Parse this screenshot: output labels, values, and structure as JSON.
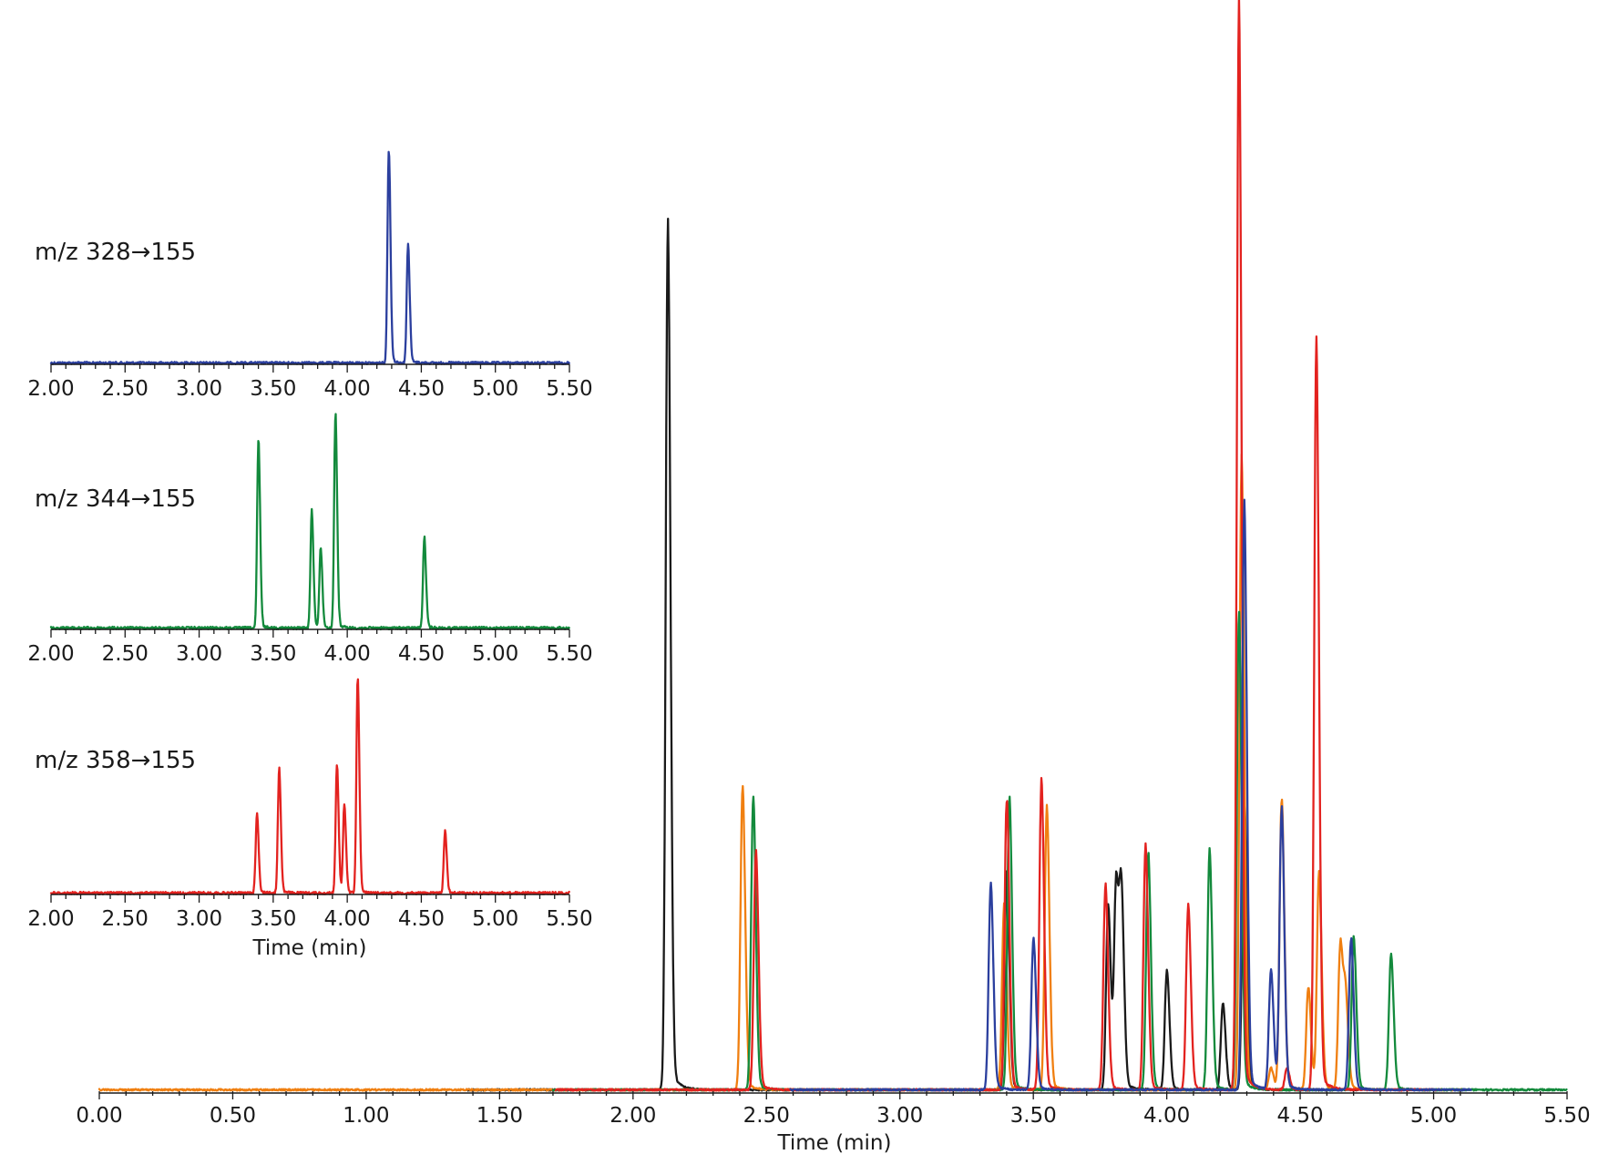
{
  "colors": {
    "blue": "#2b3f9e",
    "green": "#138a3c",
    "red": "#e3221f",
    "orange": "#f07f10",
    "black": "#1a1a1a"
  },
  "chart_data": [
    {
      "type": "line",
      "id": "inset-328",
      "label": "m/z 328→155",
      "xlim": [
        2.0,
        5.5
      ],
      "xticks": [
        "2.00",
        "2.50",
        "3.00",
        "3.50",
        "4.00",
        "4.50",
        "5.00",
        "5.50"
      ],
      "xlabel": "",
      "series": [
        {
          "color": "blue",
          "peaks": [
            {
              "t": 4.28,
              "h": 1.0
            },
            {
              "t": 4.41,
              "h": 0.55
            }
          ]
        }
      ]
    },
    {
      "type": "line",
      "id": "inset-344",
      "label": "m/z 344→155",
      "xlim": [
        2.0,
        5.5
      ],
      "xticks": [
        "2.00",
        "2.50",
        "3.00",
        "3.50",
        "4.00",
        "4.50",
        "5.00",
        "5.50"
      ],
      "xlabel": "",
      "series": [
        {
          "color": "green",
          "peaks": [
            {
              "t": 3.4,
              "h": 0.88
            },
            {
              "t": 3.76,
              "h": 0.54
            },
            {
              "t": 3.82,
              "h": 0.37
            },
            {
              "t": 3.92,
              "h": 1.0
            },
            {
              "t": 4.52,
              "h": 0.42
            }
          ]
        }
      ]
    },
    {
      "type": "line",
      "id": "inset-358",
      "label": "m/z 358→155",
      "xlim": [
        2.0,
        5.5
      ],
      "xticks": [
        "2.00",
        "2.50",
        "3.00",
        "3.50",
        "4.00",
        "4.50",
        "5.00",
        "5.50"
      ],
      "xlabel": "Time (min)",
      "series": [
        {
          "color": "red",
          "peaks": [
            {
              "t": 3.39,
              "h": 0.37
            },
            {
              "t": 3.54,
              "h": 0.58
            },
            {
              "t": 3.93,
              "h": 0.6
            },
            {
              "t": 3.98,
              "h": 0.41
            },
            {
              "t": 4.07,
              "h": 1.0
            },
            {
              "t": 4.66,
              "h": 0.29
            }
          ]
        }
      ]
    },
    {
      "type": "line",
      "id": "main",
      "label": "",
      "xlim": [
        0.0,
        5.5
      ],
      "xticks": [
        "0.00",
        "0.50",
        "1.00",
        "1.50",
        "2.00",
        "2.50",
        "3.00",
        "3.50",
        "4.00",
        "4.50",
        "5.00",
        "5.50"
      ],
      "xlabel": "Time (min)",
      "series": [
        {
          "color": "black",
          "peaks": [
            {
              "t": 2.13,
              "h": 0.8
            },
            {
              "t": 3.4,
              "h": 0.2
            },
            {
              "t": 3.78,
              "h": 0.17
            },
            {
              "t": 3.81,
              "h": 0.19
            },
            {
              "t": 3.83,
              "h": 0.17
            },
            {
              "t": 4.0,
              "h": 0.11
            },
            {
              "t": 4.21,
              "h": 0.08
            },
            {
              "t": 4.29,
              "h": 0.27
            }
          ]
        },
        {
          "color": "orange",
          "peaks": [
            {
              "t": 2.41,
              "h": 0.28
            },
            {
              "t": 3.39,
              "h": 0.17
            },
            {
              "t": 3.55,
              "h": 0.26
            },
            {
              "t": 4.28,
              "h": 0.58
            },
            {
              "t": 4.39,
              "h": 0.02
            },
            {
              "t": 4.43,
              "h": 0.27
            },
            {
              "t": 4.53,
              "h": 0.095
            },
            {
              "t": 4.57,
              "h": 0.2
            },
            {
              "t": 4.65,
              "h": 0.135
            },
            {
              "t": 4.67,
              "h": 0.08
            }
          ]
        },
        {
          "color": "green",
          "peaks": [
            {
              "t": 2.45,
              "h": 0.27
            },
            {
              "t": 3.41,
              "h": 0.27
            },
            {
              "t": 3.93,
              "h": 0.22
            },
            {
              "t": 4.16,
              "h": 0.22
            },
            {
              "t": 4.27,
              "h": 0.44
            },
            {
              "t": 4.7,
              "h": 0.14
            },
            {
              "t": 4.84,
              "h": 0.125
            }
          ]
        },
        {
          "color": "red",
          "peaks": [
            {
              "t": 2.46,
              "h": 0.22
            },
            {
              "t": 3.4,
              "h": 0.27
            },
            {
              "t": 3.53,
              "h": 0.285
            },
            {
              "t": 3.77,
              "h": 0.19
            },
            {
              "t": 3.92,
              "h": 0.225
            },
            {
              "t": 4.08,
              "h": 0.17
            },
            {
              "t": 4.27,
              "h": 1.0
            },
            {
              "t": 4.45,
              "h": 0.02
            },
            {
              "t": 4.56,
              "h": 0.69
            }
          ]
        },
        {
          "color": "blue",
          "peaks": [
            {
              "t": 3.34,
              "h": 0.19
            },
            {
              "t": 3.5,
              "h": 0.14
            },
            {
              "t": 4.29,
              "h": 0.54
            },
            {
              "t": 4.39,
              "h": 0.11
            },
            {
              "t": 4.43,
              "h": 0.26
            },
            {
              "t": 4.69,
              "h": 0.14
            }
          ]
        }
      ]
    }
  ]
}
